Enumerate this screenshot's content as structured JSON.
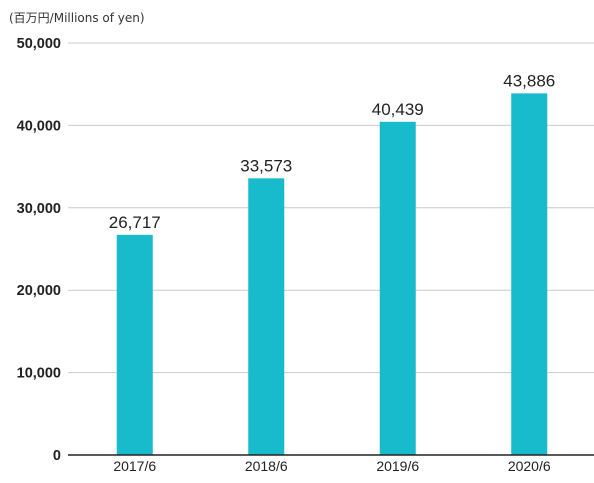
{
  "chart_data": {
    "type": "bar",
    "unit_label": "(百万円/Millions of yen)",
    "categories": [
      "2017/6",
      "2018/6",
      "2019/6",
      "2020/6"
    ],
    "values": [
      26717,
      33573,
      40439,
      43886
    ],
    "value_labels": [
      "26,717",
      "33,573",
      "40,439",
      "43,886"
    ],
    "y_ticks": [
      0,
      10000,
      20000,
      30000,
      40000,
      50000
    ],
    "y_tick_labels": [
      "0",
      "10,000",
      "20,000",
      "30,000",
      "40,000",
      "50,000"
    ],
    "ylim": [
      0,
      50000
    ],
    "grid": true,
    "bar_color": "#17BBCC",
    "grid_color": "#CCCCCC",
    "axis_color": "#222222"
  }
}
